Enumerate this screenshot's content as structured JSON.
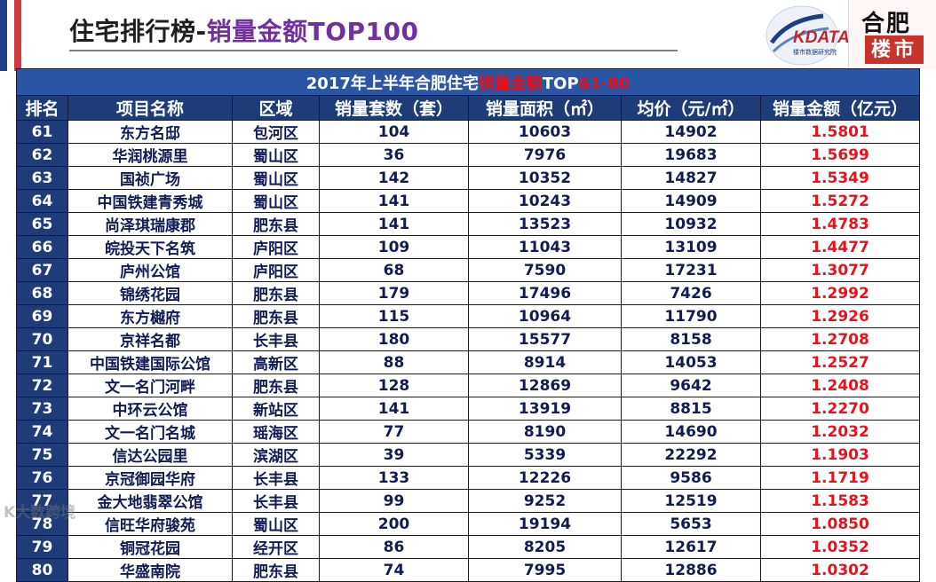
{
  "page": {
    "title_main": "住宅排行榜-",
    "title_accent": "销量金额TOP100"
  },
  "logos": {
    "kdata_text": "KDATA",
    "kdata_sub": "楼市数据研究院",
    "hefei_top": "合肥",
    "hefei_bottom": "楼市"
  },
  "table": {
    "banner_prefix": "2017年上半年合肥住宅",
    "banner_hl": "销量金额",
    "banner_mid": "TOP",
    "banner_range": "61-80",
    "columns": [
      "排名",
      "项目名称",
      "区域",
      "销量套数（套）",
      "销量面积（㎡）",
      "均价（元/㎡）",
      "销量金额（亿元）"
    ],
    "rows": [
      [
        "61",
        "东方名邸",
        "包河区",
        "104",
        "10603",
        "14902",
        "1.5801"
      ],
      [
        "62",
        "华润桃源里",
        "蜀山区",
        "36",
        "7976",
        "19683",
        "1.5699"
      ],
      [
        "63",
        "国祯广场",
        "蜀山区",
        "142",
        "10352",
        "14827",
        "1.5349"
      ],
      [
        "64",
        "中国铁建青秀城",
        "蜀山区",
        "141",
        "10243",
        "14909",
        "1.5272"
      ],
      [
        "65",
        "尚泽琪瑞康郡",
        "肥东县",
        "141",
        "13523",
        "10932",
        "1.4783"
      ],
      [
        "66",
        "皖投天下名筑",
        "庐阳区",
        "109",
        "11043",
        "13109",
        "1.4477"
      ],
      [
        "67",
        "庐州公馆",
        "庐阳区",
        "68",
        "7590",
        "17231",
        "1.3077"
      ],
      [
        "68",
        "锦绣花园",
        "肥东县",
        "179",
        "17496",
        "7426",
        "1.2992"
      ],
      [
        "69",
        "东方樾府",
        "肥东县",
        "115",
        "10964",
        "11790",
        "1.2926"
      ],
      [
        "70",
        "京祥名都",
        "长丰县",
        "180",
        "15577",
        "8158",
        "1.2708"
      ],
      [
        "71",
        "中国铁建国际公馆",
        "高新区",
        "88",
        "8914",
        "14053",
        "1.2527"
      ],
      [
        "72",
        "文一名门河畔",
        "肥东县",
        "128",
        "12869",
        "9642",
        "1.2408"
      ],
      [
        "73",
        "中环云公馆",
        "新站区",
        "141",
        "13919",
        "8815",
        "1.2270"
      ],
      [
        "74",
        "文一名门名城",
        "瑶海区",
        "77",
        "8190",
        "14690",
        "1.2032"
      ],
      [
        "75",
        "信达公园里",
        "滨湖区",
        "39",
        "5339",
        "22292",
        "1.1903"
      ],
      [
        "76",
        "京冠御园华府",
        "长丰县",
        "133",
        "12226",
        "9586",
        "1.1719"
      ],
      [
        "77",
        "金大地翡翠公馆",
        "长丰县",
        "99",
        "9252",
        "12519",
        "1.1583"
      ],
      [
        "78",
        "信旺华府骏苑",
        "蜀山区",
        "200",
        "19194",
        "5653",
        "1.0850"
      ],
      [
        "79",
        "铜冠花园",
        "经开区",
        "86",
        "8205",
        "12617",
        "1.0352"
      ],
      [
        "80",
        "华盛南院",
        "肥东县",
        "74",
        "7995",
        "12886",
        "1.0302"
      ]
    ]
  },
  "watermark": "K大数跨境",
  "colors": {
    "header_bg": "#1e3d78",
    "banner_bg": "#2a56a5",
    "amount_red": "#e8121d",
    "title_purple": "#7030a0"
  }
}
